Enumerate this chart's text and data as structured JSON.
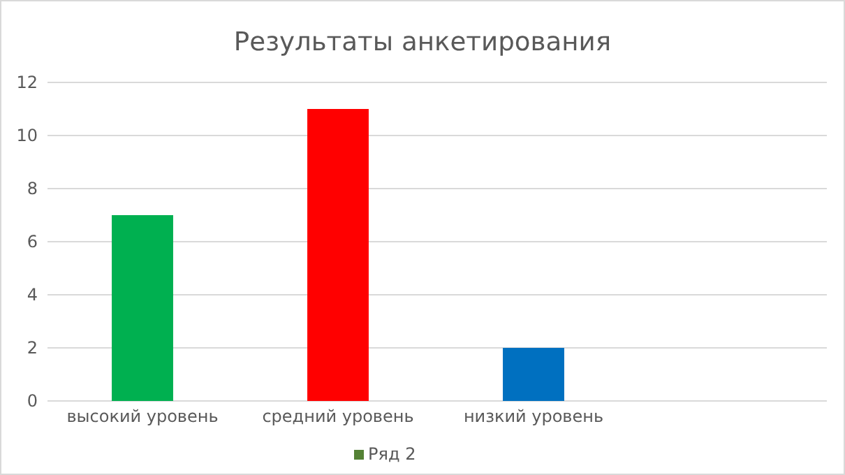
{
  "chart_data": {
    "type": "bar",
    "title": "Результаты анкетирования",
    "categories": [
      "высокий уровень",
      "средний уровень",
      "низкий уровень",
      null
    ],
    "series": [
      {
        "name": "Ряд 2",
        "color": "#548235",
        "colors": [
          "#00b050",
          "#ff0000",
          "#0070c0",
          null
        ],
        "values": [
          7,
          11,
          2,
          null
        ]
      }
    ],
    "ylim": [
      0,
      12
    ],
    "yticks": [
      0,
      2,
      4,
      6,
      8,
      10,
      12
    ],
    "grid": "y",
    "legend": "bottom"
  }
}
